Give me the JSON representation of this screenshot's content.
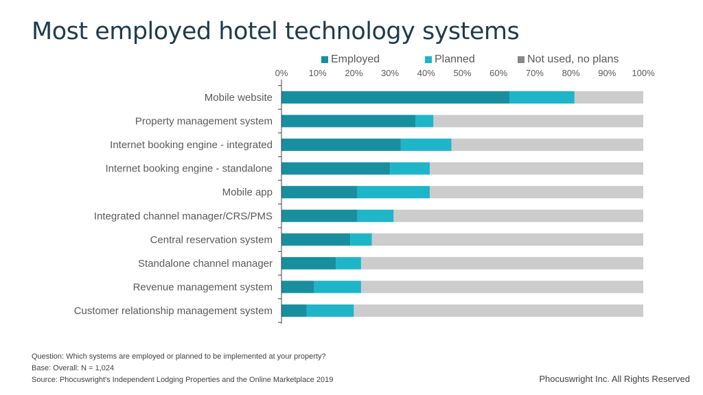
{
  "title": "Most employed hotel technology systems",
  "colors": {
    "employed": "#188f9f",
    "planned": "#1fb5c9",
    "not_used": "#cccccc",
    "legend_not_used": "#888888",
    "title": "#1f3b4d"
  },
  "chart_data": {
    "type": "bar",
    "orientation": "horizontal",
    "stacked": true,
    "categories": [
      "Mobile website",
      "Property management system",
      "Internet booking engine - integrated",
      "Internet booking engine - standalone",
      "Mobile app",
      "Integrated channel manager/CRS/PMS",
      "Central reservation system",
      "Standalone channel manager",
      "Revenue management system",
      "Customer relationship management system"
    ],
    "series": [
      {
        "name": "Employed",
        "values": [
          63,
          37,
          33,
          30,
          21,
          21,
          19,
          15,
          9,
          7
        ]
      },
      {
        "name": "Planned",
        "values": [
          18,
          5,
          14,
          11,
          20,
          10,
          6,
          7,
          13,
          13
        ]
      },
      {
        "name": "Not used, no plans",
        "values": [
          19,
          58,
          53,
          59,
          59,
          69,
          75,
          78,
          78,
          80
        ]
      }
    ],
    "xlim": [
      0,
      100
    ],
    "x_ticks": [
      "0%",
      "10%",
      "20%",
      "30%",
      "40%",
      "50%",
      "60%",
      "70%",
      "80%",
      "90%",
      "100%"
    ],
    "x_axis_position": "top",
    "legend_position": "top",
    "grid": false
  },
  "footer": {
    "question": "Question: Which systems are employed or planned to be implemented at your property?",
    "base": "Base: Overall: N = 1,024",
    "source": "Source: Phocuswright's Independent Lodging Properties and the Online Marketplace 2019"
  },
  "copyright": "Phocuswright Inc. All Rights Reserved"
}
